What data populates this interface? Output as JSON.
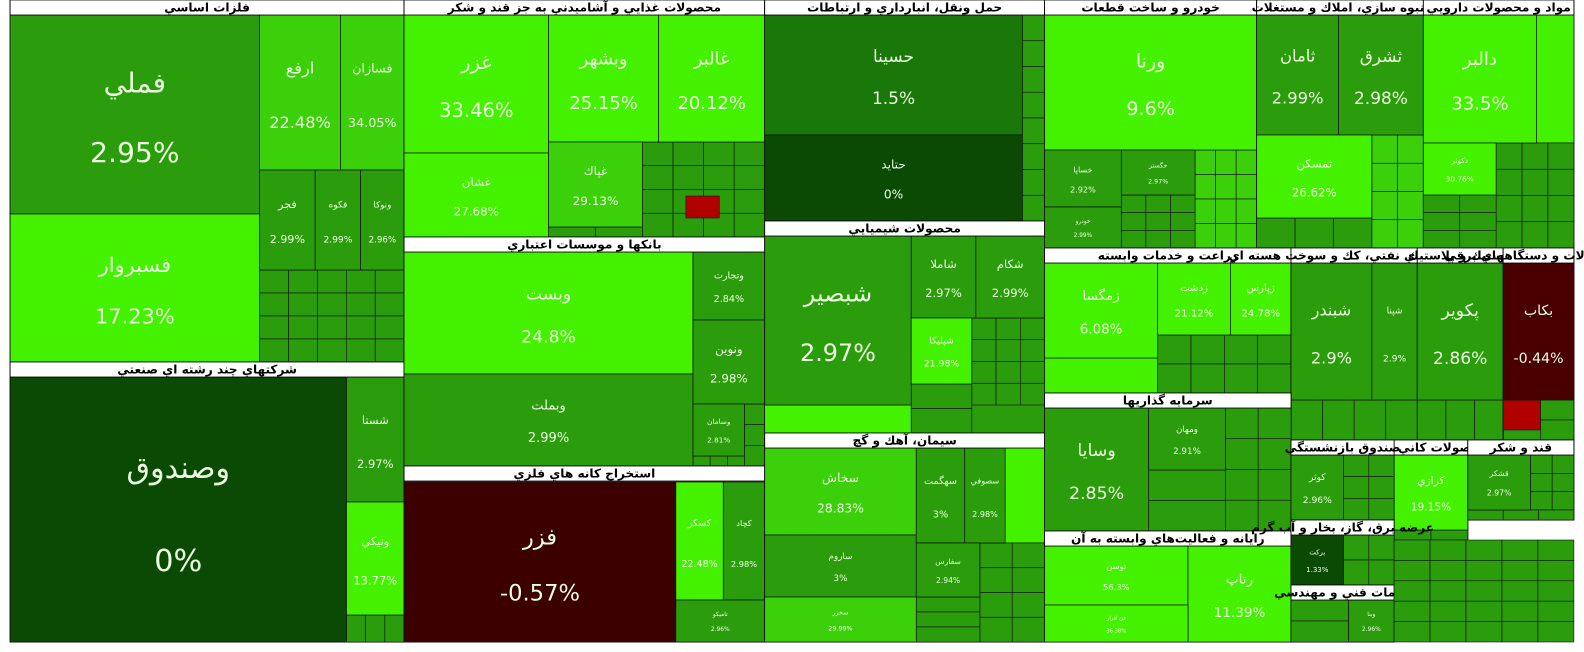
{
  "sectors": [
    {
      "title": "فلزات اساسي",
      "tiles": [
        {
          "symbol": "فملي",
          "change": "2.95%"
        },
        {
          "symbol": "فسبروار",
          "change": "17.23%"
        },
        {
          "symbol": "ارفع",
          "change": "22.48%"
        },
        {
          "symbol": "فسازان",
          "change": "34.05%"
        },
        {
          "symbol": "فجر",
          "change": "2.99%"
        },
        {
          "symbol": "فكوه",
          "change": "2.99%"
        },
        {
          "symbol": "ونوكا",
          "change": "2.96%"
        }
      ]
    },
    {
      "title": "شرکتهاي چند رشته اي صنعتي",
      "tiles": [
        {
          "symbol": "وصندوق",
          "change": "0%"
        },
        {
          "symbol": "شستا",
          "change": "2.97%"
        },
        {
          "symbol": "ونيكي",
          "change": "13.77%"
        }
      ]
    },
    {
      "title": "محصولات غذايي و آشاميدني به جز قند و شكر",
      "tiles": [
        {
          "symbol": "غزر",
          "change": "33.46%"
        },
        {
          "symbol": "وبشهر",
          "change": "25.15%"
        },
        {
          "symbol": "غالبر",
          "change": "20.12%"
        },
        {
          "symbol": "غشان",
          "change": "27.68%"
        },
        {
          "symbol": "غپاك",
          "change": "29.13%"
        }
      ]
    },
    {
      "title": "بانكها و موسسات اعتباري",
      "tiles": [
        {
          "symbol": "وبست",
          "change": "24.8%"
        },
        {
          "symbol": "وبملت",
          "change": "2.99%"
        },
        {
          "symbol": "وتجارت",
          "change": "2.84%"
        },
        {
          "symbol": "ونوين",
          "change": "2.98%"
        },
        {
          "symbol": "وسامان",
          "change": "2.81%"
        }
      ]
    },
    {
      "title": "استخراج كانه هاي فلزي",
      "tiles": [
        {
          "symbol": "فزر",
          "change": "-0.57%"
        },
        {
          "symbol": "كسكر",
          "change": "22.48%"
        },
        {
          "symbol": "كچاد",
          "change": "2.98%"
        },
        {
          "symbol": "تاميكو",
          "change": "2.96%"
        }
      ]
    },
    {
      "title": "حمل ونقل، انبارداري و ارتباطات",
      "tiles": [
        {
          "symbol": "حسينا",
          "change": "1.5%"
        },
        {
          "symbol": "حتايد",
          "change": "0%"
        }
      ]
    },
    {
      "title": "محصولات شيميايي",
      "tiles": [
        {
          "symbol": "شبصير",
          "change": "2.97%"
        },
        {
          "symbol": "شاملا",
          "change": "2.97%"
        },
        {
          "symbol": "شكام",
          "change": "2.99%"
        },
        {
          "symbol": "شپليكا",
          "change": "21.98%"
        }
      ]
    },
    {
      "title": "سيمان، آهك و گچ",
      "tiles": [
        {
          "symbol": "سخاش",
          "change": "28.83%"
        },
        {
          "symbol": "ساروم",
          "change": "3%"
        },
        {
          "symbol": "سخزر",
          "change": "29.99%"
        },
        {
          "symbol": "سهگمت",
          "change": "3%"
        },
        {
          "symbol": "سصوفي",
          "change": "2.98%"
        },
        {
          "symbol": "سفارس",
          "change": "2.94%"
        }
      ]
    },
    {
      "title": "خودرو و ساخت قطعات",
      "tiles": [
        {
          "symbol": "ورنا",
          "change": "9.6%"
        },
        {
          "symbol": "خساپا",
          "change": "2.92%"
        },
        {
          "symbol": "خگستر",
          "change": "2.97%"
        },
        {
          "symbol": "خودرو",
          "change": "2.99%"
        }
      ]
    },
    {
      "title": "انبوه سازي، املاك و مستغلات",
      "tiles": [
        {
          "symbol": "ثامان",
          "change": "2.99%"
        },
        {
          "symbol": "ثشرق",
          "change": "2.98%"
        },
        {
          "symbol": "ثمسكن",
          "change": "26.62%"
        }
      ]
    },
    {
      "title": "مواد و محصولات دارويي",
      "tiles": [
        {
          "symbol": "دالبر",
          "change": "33.5%"
        },
        {
          "symbol": "دكوثر",
          "change": "30.76%"
        }
      ]
    },
    {
      "title": "زراعت و خدمات وابسته",
      "tiles": [
        {
          "symbol": "زمگسا",
          "change": "6.08%"
        },
        {
          "symbol": "زدشت",
          "change": "21.12%"
        },
        {
          "symbol": "زپارس",
          "change": "24.78%"
        }
      ]
    },
    {
      "title": "فرآورده هاي نفتي، كك و سوخت هسته اي",
      "tiles": [
        {
          "symbol": "شبندر",
          "change": "2.9%"
        },
        {
          "symbol": "شپنا",
          "change": "2.9%"
        }
      ]
    },
    {
      "title": "لاستيك و پلاستيك",
      "tiles": [
        {
          "symbol": "پكوير",
          "change": "2.86%"
        }
      ]
    },
    {
      "title": "ماشين آلات و دستگاههاي برقي",
      "tiles": [
        {
          "symbol": "بكاب",
          "change": "-0.44%"
        }
      ]
    },
    {
      "title": "سرمايه گذاريها",
      "tiles": [
        {
          "symbol": "وسايا",
          "change": "2.85%"
        },
        {
          "symbol": "ومهان",
          "change": "2.91%"
        }
      ]
    },
    {
      "title": "رايانه و فعاليت‌هاي وابسته به آن",
      "tiles": [
        {
          "symbol": "توسن",
          "change": "56.3%"
        },
        {
          "symbol": "رتاپ",
          "change": "11.39%"
        },
        {
          "symbol": "فن افزار",
          "change": "36.38%"
        }
      ]
    },
    {
      "title": "ساير محصولات كاني غيرفلزي",
      "tiles": [
        {
          "symbol": "كرازي",
          "change": "19.15%"
        }
      ]
    },
    {
      "title": "قند و شكر",
      "tiles": [
        {
          "symbol": "قشكر",
          "change": "2.97%"
        }
      ]
    },
    {
      "title": "صندوق بازنشستگي",
      "tiles": [
        {
          "symbol": "كوثر",
          "change": "2.96%"
        }
      ]
    },
    {
      "title": "عرضه برق، گاز، بخار و آب گرم",
      "tiles": [
        {
          "symbol": "بركت",
          "change": "1.33%"
        }
      ]
    },
    {
      "title": "خدمات فني و مهندسي",
      "tiles": [
        {
          "symbol": "وبنا",
          "change": "2.96%"
        }
      ]
    }
  ]
}
